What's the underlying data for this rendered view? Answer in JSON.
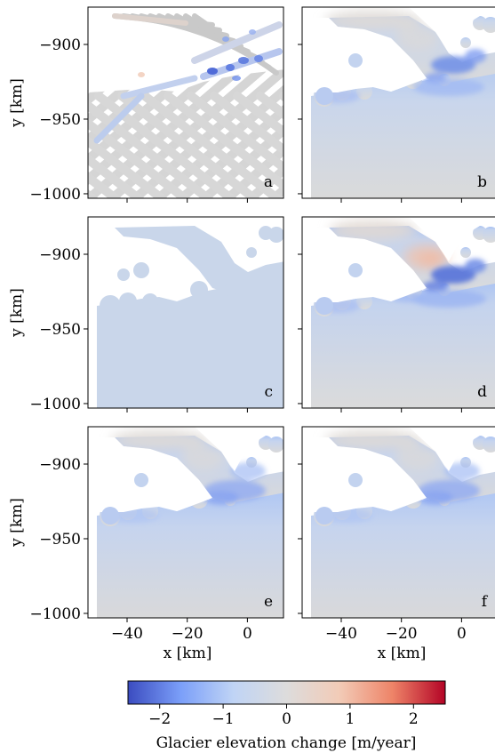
{
  "chart_data": {
    "type": "heatmap",
    "layout": "3x2 grid of map panels with shared axes",
    "panels": [
      {
        "letter": "a",
        "pattern": "sparse diagonal tracks",
        "max_thinning_m_per_year": -2.2
      },
      {
        "letter": "b",
        "pattern": "dense interpolated field",
        "max_thinning_m_per_year": -1.6
      },
      {
        "letter": "c",
        "pattern": "uniform field",
        "max_thinning_m_per_year": -0.4
      },
      {
        "letter": "d",
        "pattern": "dense interpolated field with strong signal",
        "max_thinning_m_per_year": -2.0
      },
      {
        "letter": "e",
        "pattern": "smooth field",
        "max_thinning_m_per_year": -1.3
      },
      {
        "letter": "f",
        "pattern": "smooth field",
        "max_thinning_m_per_year": -1.3
      }
    ],
    "xlabel": "x [km]",
    "ylabel": "y [km]",
    "xticks": [
      -40,
      -20,
      0
    ],
    "yticks": [
      -900,
      -950,
      -1000
    ],
    "xtick_labels": [
      "−40",
      "−20",
      "0"
    ],
    "ytick_labels": [
      "−900",
      "−950",
      "−1000"
    ],
    "xlim": [
      -53,
      12
    ],
    "ylim": [
      -1003,
      -875
    ],
    "colorbar": {
      "label": "Glacier elevation change [m/year]",
      "range": [
        -2.5,
        2.5
      ],
      "ticks": [
        -2,
        -1,
        0,
        1,
        2
      ],
      "tick_labels": [
        "−2",
        "−1",
        "0",
        "1",
        "2"
      ],
      "colormap": "coolwarm",
      "stops": [
        "#3b4cc0",
        "#7b9ff9",
        "#c0d4f5",
        "#dddcdc",
        "#f2cbb7",
        "#ee8468",
        "#b40426"
      ]
    }
  }
}
